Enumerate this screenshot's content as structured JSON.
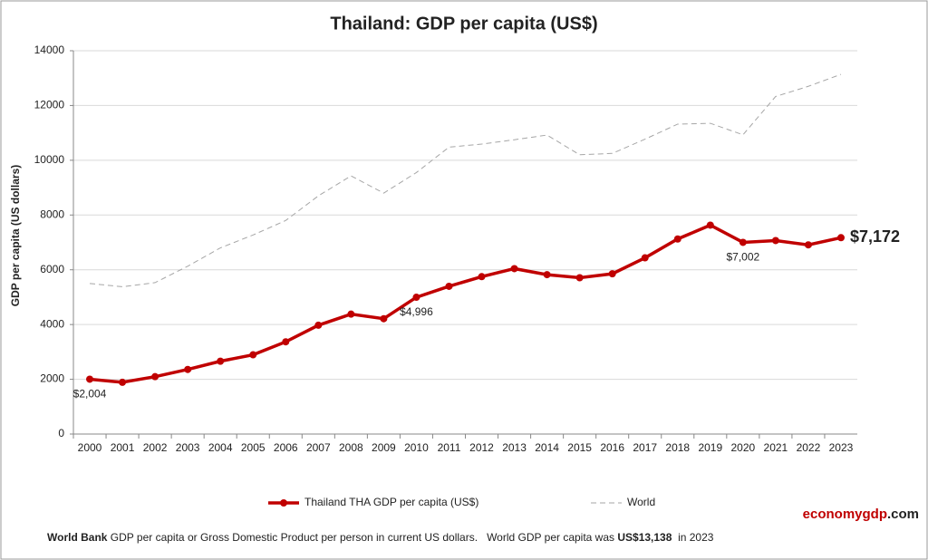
{
  "chart_data": {
    "type": "line",
    "title": "Thailand: GDP per capita (US$)",
    "y_label": "GDP per capita (US dollars)",
    "categories": [
      "2000",
      "2001",
      "2002",
      "2003",
      "2004",
      "2005",
      "2006",
      "2007",
      "2008",
      "2009",
      "2010",
      "2011",
      "2012",
      "2013",
      "2014",
      "2015",
      "2016",
      "2017",
      "2018",
      "2019",
      "2020",
      "2021",
      "2022",
      "2023"
    ],
    "series": [
      {
        "name": "Thailand THA GDP per capita (US$)",
        "color": "#c00000",
        "values": [
          2004,
          1890,
          2096,
          2359,
          2660,
          2894,
          3369,
          3974,
          4380,
          4213,
          4996,
          5396,
          5750,
          6041,
          5822,
          5709,
          5854,
          6436,
          7124,
          7630,
          7002,
          7067,
          6910,
          7172
        ],
        "value_labels": [
          "$2,004",
          null,
          null,
          null,
          null,
          null,
          null,
          null,
          null,
          null,
          "$4,996",
          null,
          null,
          null,
          null,
          null,
          null,
          null,
          null,
          null,
          "$7,002",
          null,
          null,
          "$7,172"
        ]
      },
      {
        "name": "World",
        "color": "#a6a6a6",
        "dashed": true,
        "values": [
          5500,
          5380,
          5530,
          6130,
          6800,
          7270,
          7800,
          8700,
          9430,
          8800,
          9550,
          10480,
          10590,
          10750,
          10920,
          10200,
          10250,
          10770,
          11320,
          11350,
          10930,
          12330,
          12700,
          13138
        ]
      }
    ],
    "ylim": [
      0,
      14000
    ],
    "yticks": [
      0,
      2000,
      4000,
      6000,
      8000,
      10000,
      12000,
      14000
    ],
    "grid": true,
    "footnote": [
      {
        "text": "World Bank",
        "bold": true
      },
      {
        "text": " GDP per capita or Gross Domestic Product per person in current US dollars.   World GDP per capita was ",
        "bold": false
      },
      {
        "text": "US$13,138",
        "bold": true
      },
      {
        "text": "  in 2023",
        "bold": false
      }
    ],
    "brand": [
      {
        "text": "economygdp",
        "color": "#c00000"
      },
      {
        "text": ".com",
        "color": "#222222"
      }
    ]
  }
}
